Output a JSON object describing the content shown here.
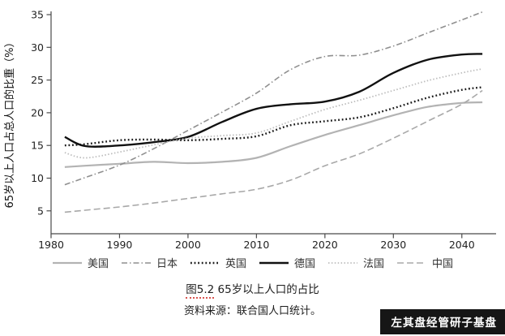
{
  "chart_data": {
    "type": "line",
    "title": "图5.2 65岁以上人口的占比",
    "ylabel": "65岁以上人口占总人口的比重（%）",
    "xlabel": "",
    "xlim": [
      1980,
      2045
    ],
    "ylim": [
      1.5,
      35.5
    ],
    "y_ticks": [
      5,
      10,
      15,
      20,
      25,
      30,
      35
    ],
    "x_ticks": [
      1980,
      1990,
      2000,
      2010,
      2020,
      2030,
      2040
    ],
    "grid": false,
    "legend_position": "bottom",
    "x": [
      1982,
      1985,
      1990,
      1995,
      2000,
      2005,
      2010,
      2015,
      2020,
      2025,
      2030,
      2035,
      2040,
      2043
    ],
    "series": [
      {
        "key": "usa",
        "name": "美国",
        "color": "#b3b3b3",
        "width": 2.2,
        "dash": "",
        "values": [
          11.7,
          11.9,
          12.2,
          12.5,
          12.3,
          12.5,
          13.1,
          14.9,
          16.6,
          18.1,
          19.6,
          20.9,
          21.5,
          21.6
        ]
      },
      {
        "key": "japan",
        "name": "日本",
        "color": "#8f8f8f",
        "width": 1.6,
        "dash": "7 3 1.5 3",
        "values": [
          9.0,
          10.1,
          12.0,
          14.5,
          17.3,
          20.1,
          23.0,
          26.6,
          28.6,
          28.8,
          30.2,
          32.2,
          34.2,
          35.4
        ]
      },
      {
        "key": "uk",
        "name": "英国",
        "color": "#1a1a1a",
        "width": 2.4,
        "dash": "1.8 2.8",
        "values": [
          15.0,
          15.2,
          15.8,
          15.9,
          15.8,
          16.0,
          16.4,
          18.1,
          18.7,
          19.3,
          20.7,
          22.3,
          23.5,
          23.9
        ]
      },
      {
        "key": "germany",
        "name": "德国",
        "color": "#111111",
        "width": 2.4,
        "dash": "",
        "values": [
          16.3,
          14.9,
          15.0,
          15.5,
          16.3,
          18.6,
          20.6,
          21.3,
          21.7,
          23.2,
          26.1,
          28.1,
          28.9,
          29.0
        ]
      },
      {
        "key": "france",
        "name": "法国",
        "color": "#bdbdbd",
        "width": 1.8,
        "dash": "1.5 2.4",
        "values": [
          13.9,
          13.1,
          14.0,
          15.1,
          16.1,
          16.5,
          16.9,
          18.7,
          20.5,
          21.9,
          23.4,
          24.9,
          26.1,
          26.7
        ]
      },
      {
        "key": "china",
        "name": "中国",
        "color": "#a8a8a8",
        "width": 1.6,
        "dash": "8 4",
        "values": [
          4.8,
          5.1,
          5.6,
          6.2,
          6.9,
          7.6,
          8.3,
          9.7,
          11.9,
          13.7,
          16.1,
          18.7,
          21.3,
          23.4
        ]
      }
    ]
  },
  "caption": {
    "prefix": "图5.2",
    "text": "65岁以上人口的占比"
  },
  "source": "资料来源：联合国人口统计。",
  "watermark": "左其盘经管研子基盘"
}
